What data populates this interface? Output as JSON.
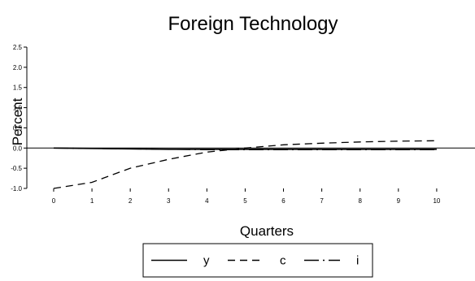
{
  "chart_data": {
    "type": "line",
    "title": "Foreign Technology",
    "xlabel": "Quarters",
    "ylabel": "Percent",
    "x": [
      0,
      1,
      2,
      3,
      4,
      5,
      6,
      7,
      8,
      9,
      10
    ],
    "x_ticks": [
      "0",
      "1",
      "2",
      "3",
      "4",
      "5",
      "6",
      "7",
      "8",
      "9",
      "10"
    ],
    "xlim": [
      -0.7,
      11
    ],
    "ylim": [
      -1.0,
      2.5
    ],
    "y_ticks": [
      "-1.0",
      "-0.5",
      "0.0",
      "0.5",
      "1.0",
      "1.5",
      "2.0",
      "2.5"
    ],
    "legend_position": "bottom",
    "series": [
      {
        "name": "y",
        "style": "solid",
        "values": [
          0.0,
          -0.01,
          -0.02,
          -0.03,
          -0.03,
          -0.03,
          -0.03,
          -0.03,
          -0.03,
          -0.03,
          -0.03
        ]
      },
      {
        "name": "c",
        "style": "dashed",
        "values": [
          -1.0,
          -0.85,
          -0.5,
          -0.28,
          -0.1,
          0.0,
          0.08,
          0.12,
          0.15,
          0.17,
          0.18
        ]
      },
      {
        "name": "i",
        "style": "longdash-dot",
        "values": [
          0.0,
          -0.01,
          -0.02,
          -0.03,
          -0.04,
          -0.04,
          -0.04,
          -0.04,
          -0.04,
          -0.04,
          -0.04
        ]
      }
    ]
  }
}
